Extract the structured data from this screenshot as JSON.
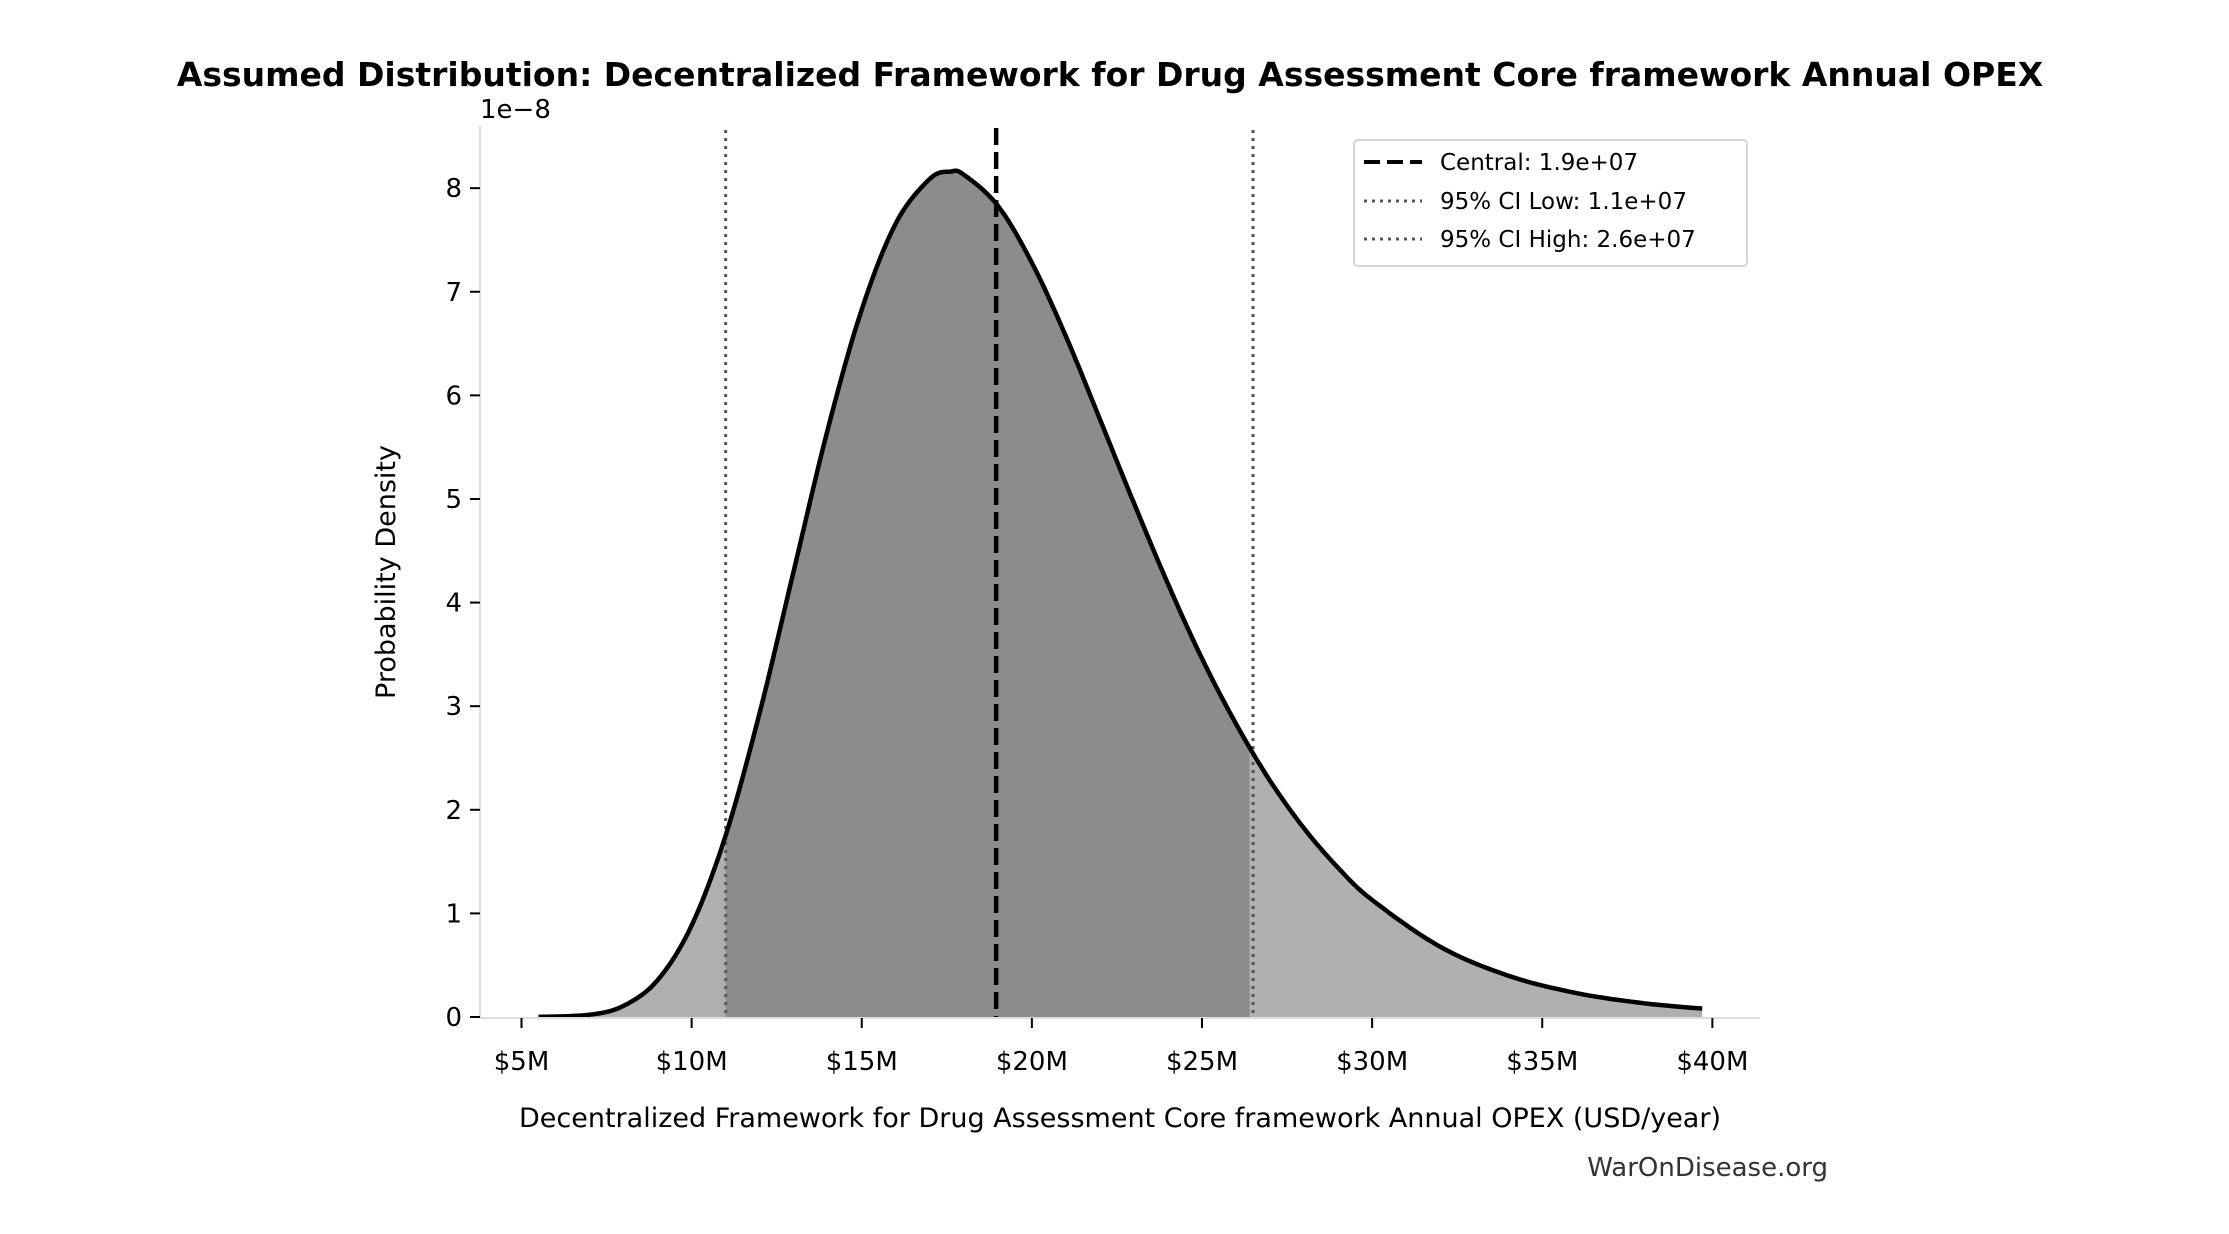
{
  "chart_data": {
    "type": "area",
    "title": "Assumed Distribution: Decentralized Framework for Drug Assessment Core framework Annual OPEX",
    "xlabel": "Decentralized Framework for Drug Assessment Core framework Annual OPEX (USD/year)",
    "ylabel": "Probability Density",
    "y_offset_label": "1e−8",
    "xlim": [
      3.78,
      41.4
    ],
    "ylim": [
      0,
      8.6
    ],
    "x_units": "million USD",
    "y_units": "1e-8",
    "x_ticks": [
      5,
      10,
      15,
      20,
      25,
      30,
      35,
      40
    ],
    "x_tick_labels": [
      "$5M",
      "$10M",
      "$15M",
      "$20M",
      "$25M",
      "$30M",
      "$35M",
      "$40M"
    ],
    "y_ticks": [
      0,
      1,
      2,
      3,
      4,
      5,
      6,
      7,
      8
    ],
    "y_tick_labels": [
      "0",
      "1",
      "2",
      "3",
      "4",
      "5",
      "6",
      "7",
      "8"
    ],
    "grid": false,
    "legend_position": "top-right",
    "series": [
      {
        "x": [
          5.5,
          7,
          8,
          9,
          10,
          11,
          12,
          13,
          14,
          15,
          16,
          17,
          17.6,
          18,
          19,
          20,
          21,
          22,
          23,
          24,
          25,
          26,
          27,
          28,
          29,
          30,
          32,
          34,
          36,
          38,
          39.7
        ],
        "y": [
          0.001,
          0.022,
          0.108,
          0.356,
          0.883,
          1.754,
          2.938,
          4.305,
          5.67,
          6.83,
          7.66,
          8.09,
          8.16,
          8.13,
          7.83,
          7.28,
          6.57,
          5.77,
          4.96,
          4.18,
          3.46,
          2.83,
          2.28,
          1.82,
          1.44,
          1.13,
          0.678,
          0.399,
          0.231,
          0.132,
          0.081
        ]
      }
    ],
    "reference_lines": [
      {
        "name": "Central: 1.9e+07",
        "x": 18.95,
        "style": "dashed"
      },
      {
        "name": "95% CI Low: 1.1e+07",
        "x": 11.0,
        "style": "dotted"
      },
      {
        "name": "95% CI High: 2.6e+07",
        "x": 26.5,
        "style": "dotted"
      }
    ],
    "colors": {
      "curve": "#000000",
      "tail_fill": "#b0b0b0",
      "ci_fill": "#8c8c8c",
      "ci_line": "#555555",
      "spine": "#dddddd"
    }
  },
  "watermark": "WarOnDisease.org"
}
